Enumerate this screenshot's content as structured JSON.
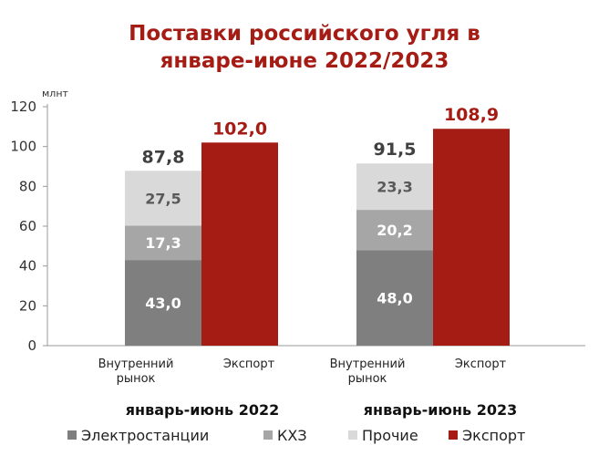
{
  "chart_data": {
    "type": "bar",
    "title": [
      "Поставки российского угля в",
      "январе-июне 2022/2023"
    ],
    "unit": "млнт",
    "ylim": [
      0,
      120
    ],
    "yticks": [
      0,
      20,
      40,
      60,
      80,
      100,
      120
    ],
    "groups": [
      {
        "label": "январь-июнь 2022",
        "bars": [
          {
            "category": "Внутренний\nрынок",
            "segments": [
              43.0,
              17.3,
              27.5
            ],
            "segment_labels": [
              "43,0",
              "17,3",
              "27,5"
            ],
            "total": 87.8,
            "total_label": "87,8"
          },
          {
            "category": "Экспорт",
            "segments": [
              102.0
            ],
            "segment_labels": [
              ""
            ],
            "total": 102.0,
            "total_label": "102,0"
          }
        ]
      },
      {
        "label": "январь-июнь 2023",
        "bars": [
          {
            "category": "Внутренний\nрынок",
            "segments": [
              48.0,
              20.2,
              23.3
            ],
            "segment_labels": [
              "48,0",
              "20,2",
              "23,3"
            ],
            "total": 91.5,
            "total_label": "91,5"
          },
          {
            "category": "Экспорт",
            "segments": [
              108.9
            ],
            "segment_labels": [
              ""
            ],
            "total": 108.9,
            "total_label": "108,9"
          }
        ]
      }
    ],
    "series": [
      {
        "name": "Электростанции",
        "color": "#7f7f7f"
      },
      {
        "name": "КХЗ",
        "color": "#a6a6a6"
      },
      {
        "name": "Прочие",
        "color": "#d9d9d9"
      },
      {
        "name": "Экспорт",
        "color": "#a51c15"
      }
    ],
    "legend": "bottom",
    "grid": false
  }
}
